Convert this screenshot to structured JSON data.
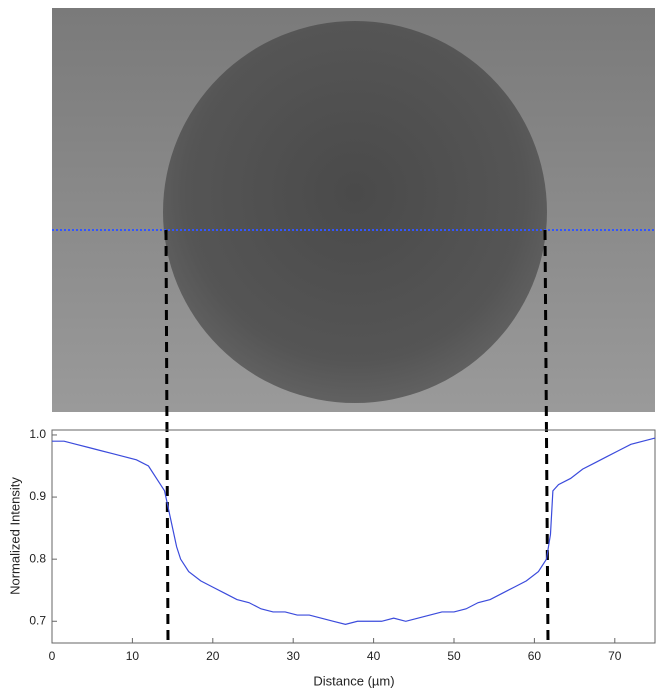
{
  "chart_data": {
    "type": "line",
    "x_label": "Distance (µm)",
    "y_label": "Normalized Intensity",
    "x": [
      0,
      1.5,
      3,
      4.5,
      6,
      7.5,
      9,
      10.5,
      12,
      13,
      14,
      14.5,
      15,
      15.5,
      16,
      17,
      18.5,
      20,
      21.5,
      23,
      24.5,
      26,
      27.5,
      29,
      30.5,
      32,
      33.5,
      35,
      36.5,
      38,
      39.5,
      41,
      42.5,
      44,
      45.5,
      47,
      48.5,
      50,
      51.5,
      53,
      54.5,
      56,
      57.5,
      59,
      60.5,
      61.5,
      62,
      62.3,
      63,
      64.5,
      66,
      67.5,
      69,
      70.5,
      72,
      73.5,
      75
    ],
    "series": [
      {
        "color": "#3b4bdc",
        "values": [
          0.99,
          0.99,
          0.985,
          0.98,
          0.975,
          0.97,
          0.965,
          0.96,
          0.95,
          0.93,
          0.91,
          0.88,
          0.85,
          0.82,
          0.8,
          0.78,
          0.765,
          0.755,
          0.745,
          0.735,
          0.73,
          0.72,
          0.715,
          0.715,
          0.71,
          0.71,
          0.705,
          0.7,
          0.695,
          0.7,
          0.7,
          0.7,
          0.705,
          0.7,
          0.705,
          0.71,
          0.715,
          0.715,
          0.72,
          0.73,
          0.735,
          0.745,
          0.755,
          0.765,
          0.78,
          0.8,
          0.84,
          0.91,
          0.92,
          0.93,
          0.945,
          0.955,
          0.965,
          0.975,
          0.985,
          0.99,
          0.995
        ]
      }
    ],
    "xlim": [
      0,
      75
    ],
    "xticks": [
      0,
      10,
      20,
      30,
      40,
      50,
      60,
      70
    ],
    "ylim": [
      0.665,
      1.008
    ],
    "yticks": [
      0.7,
      0.8,
      0.9,
      {
        "value": 1.0,
        "label": "1.0"
      }
    ]
  }
}
